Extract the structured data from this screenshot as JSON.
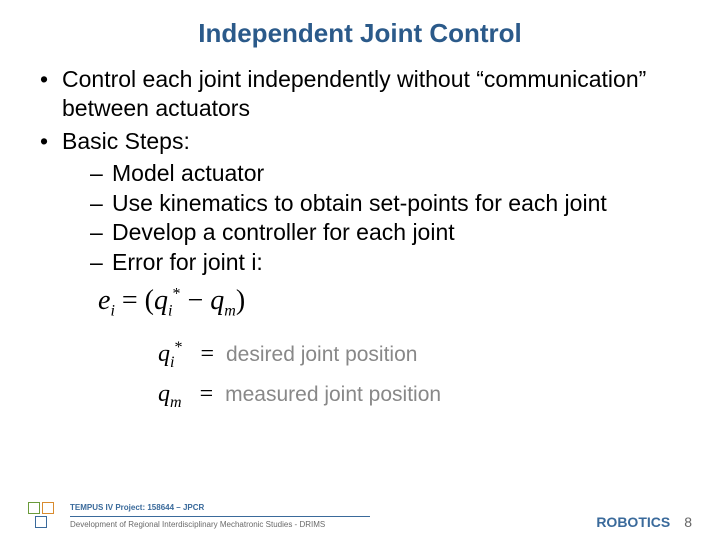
{
  "title": {
    "text": "Independent Joint Control",
    "color": "#2b5a8a",
    "fontsize": 26
  },
  "body": {
    "color": "#000000",
    "fontsize": 23,
    "bullets": [
      {
        "text": "Control each joint independently without “communication” between actuators"
      },
      {
        "text": "Basic Steps:",
        "sub": [
          {
            "text": "Model actuator"
          },
          {
            "text": "Use kinematics to obtain set-points for each joint"
          },
          {
            "text": "Develop a controller for each joint"
          },
          {
            "text": "Error for joint i:"
          }
        ]
      }
    ]
  },
  "equation": {
    "main_lhs": "e",
    "main_lhs_sub": "i",
    "main_rhs_a": "q",
    "main_rhs_a_sub": "i",
    "main_rhs_a_sup": "*",
    "main_rhs_b": "q",
    "main_rhs_b_sub": "m",
    "def1_sym": "q",
    "def1_sub": "i",
    "def1_sup": "*",
    "def1_text": "desired joint position",
    "def2_sym": "q",
    "def2_sub": "m",
    "def2_text": "measured joint position"
  },
  "footer": {
    "project_line1": "TEMPUS IV Project: 158644 – JPCR",
    "project_line2": "Development of Regional Interdisciplinary Mechatronic Studies - DRIMS",
    "line1_color": "#3a6a9b",
    "line2_color": "#6a6a6a",
    "robotics": "ROBOTICS",
    "robotics_color": "#3a6a9b",
    "page": "8"
  }
}
